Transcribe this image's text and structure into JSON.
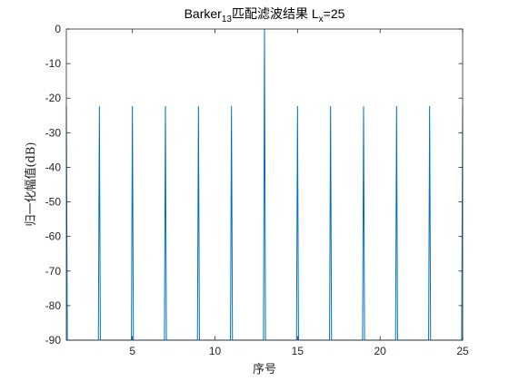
{
  "chart_data": {
    "type": "line",
    "title_parts": {
      "prefix": "Barker",
      "subscript": "13",
      "middle": "匹配滤波结果 L",
      "subscript2": "x",
      "suffix": "=25"
    },
    "xlabel": "序号",
    "ylabel": "归一化幅值(dB)",
    "xlim": [
      1,
      25
    ],
    "ylim": [
      -90,
      0
    ],
    "xticks": [
      5,
      10,
      15,
      20,
      25
    ],
    "yticks": [
      0,
      -10,
      -20,
      -30,
      -40,
      -50,
      -60,
      -70,
      -80,
      -90
    ],
    "grid": false,
    "series": [
      {
        "color": "#0072BD",
        "x": [
          1,
          1.06,
          2.94,
          3,
          3.06,
          4.94,
          5,
          5.06,
          6.94,
          7,
          7.06,
          8.94,
          9,
          9.06,
          10.94,
          11,
          11.06,
          12.94,
          13,
          13.06,
          14.94,
          15,
          15.06,
          16.94,
          17,
          17.06,
          18.94,
          19,
          19.06,
          20.94,
          21,
          21.06,
          22.94,
          23,
          23.06,
          24.94,
          25
        ],
        "y": [
          -22.3,
          -90,
          -90,
          -22.3,
          -90,
          -90,
          -22.3,
          -90,
          -90,
          -22.3,
          -90,
          -90,
          -22.3,
          -90,
          -90,
          -22.3,
          -90,
          -90,
          0,
          -90,
          -90,
          -22.3,
          -90,
          -90,
          -22.3,
          -90,
          -90,
          -22.3,
          -90,
          -90,
          -22.3,
          -90,
          -90,
          -22.3,
          -90,
          -90,
          -22.3
        ]
      }
    ]
  }
}
